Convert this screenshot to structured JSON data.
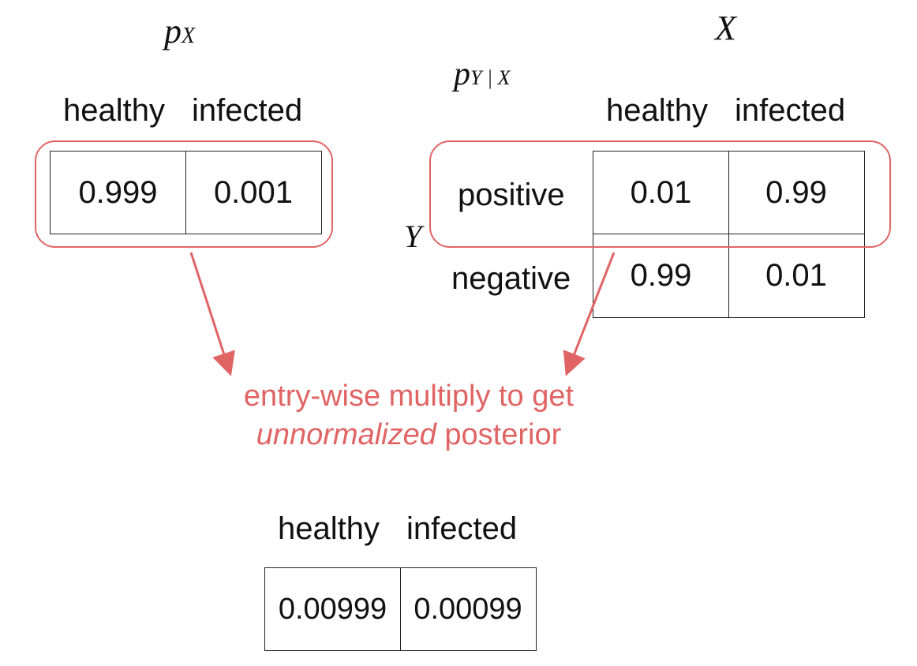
{
  "prior": {
    "title_base": "p",
    "title_sub": "X",
    "headers": [
      "healthy",
      "infected"
    ],
    "values": [
      "0.999",
      "0.001"
    ]
  },
  "likelihood": {
    "title_base": "p",
    "title_sub": "Y | X",
    "col_var": "X",
    "row_var": "Y",
    "headers": [
      "healthy",
      "infected"
    ],
    "rows": [
      {
        "label": "positive",
        "values": [
          "0.01",
          "0.99"
        ]
      },
      {
        "label": "negative",
        "values": [
          "0.99",
          "0.01"
        ]
      }
    ]
  },
  "annotation": {
    "line1": "entry-wise multiply to get",
    "emph": "unnormalized",
    "rest": " posterior",
    "color": "#e06464"
  },
  "posterior": {
    "headers": [
      "healthy",
      "infected"
    ],
    "values": [
      "0.00999",
      "0.00099"
    ]
  }
}
